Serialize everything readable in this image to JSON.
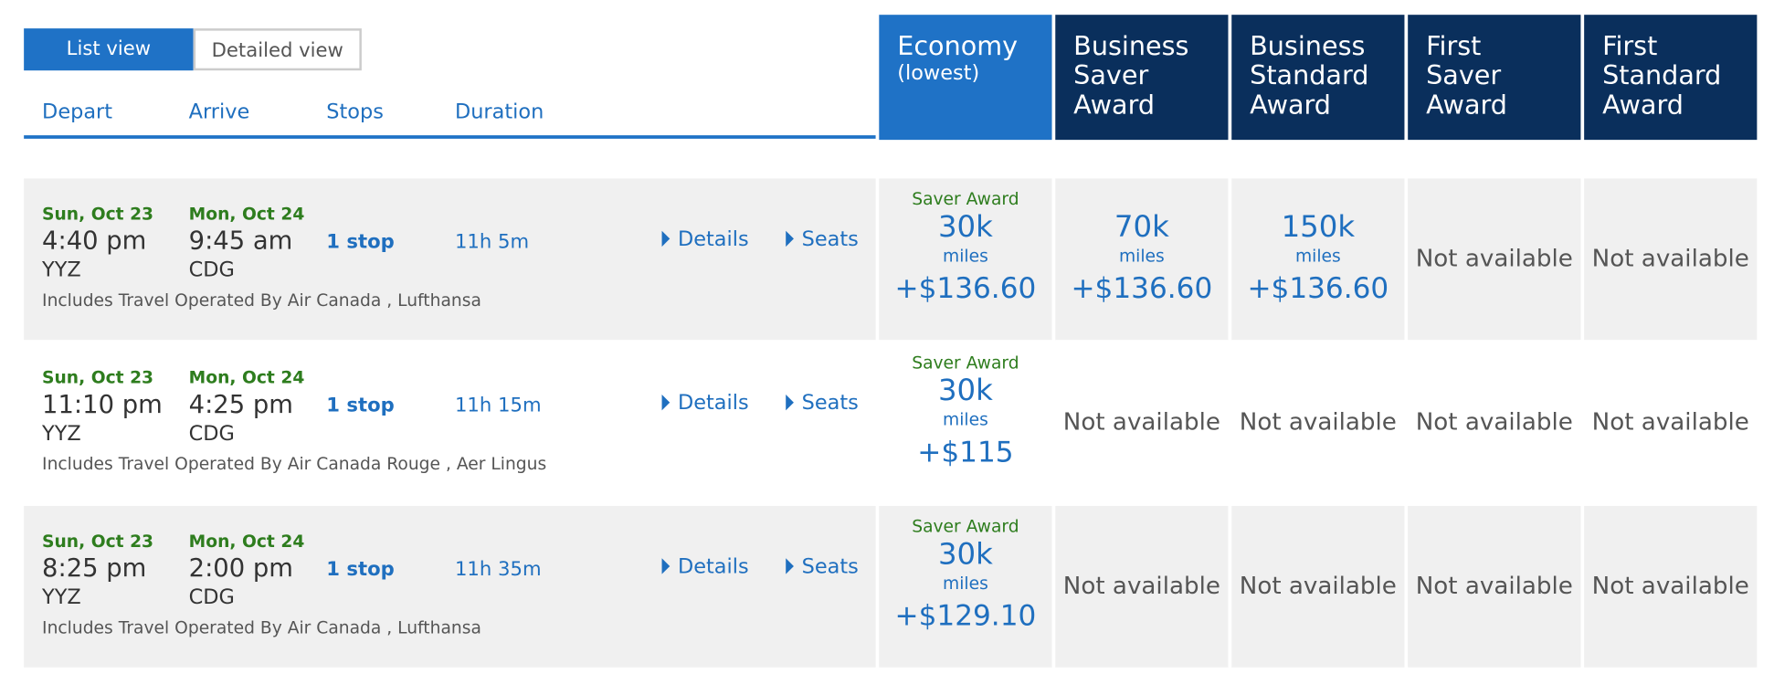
{
  "tabs": [
    "List view",
    "Detailed view"
  ],
  "columns": [
    "Depart",
    "Arrive",
    "Stops",
    "Duration"
  ],
  "fare_headers": [
    {
      "title": "Economy",
      "subtitle": "(lowest)"
    },
    {
      "title": "Business Saver Award"
    },
    {
      "title": "Business Standard Award"
    },
    {
      "title": "First Saver Award"
    },
    {
      "title": "First Standard Award"
    }
  ],
  "rows": [
    {
      "depart_date": "Sun, Oct 23",
      "depart_time": "4:40 pm",
      "origin": "YYZ",
      "arrive_date": "Mon, Oct 24",
      "arrive_time": "9:45 am",
      "destination": "CDG",
      "stops": "1 stop",
      "duration": "11h 5m",
      "operated_by": "Includes Travel Operated By Air Canada , Lufthansa",
      "details": "Details",
      "seats": "Seats",
      "fares": [
        {
          "label": "Saver Award",
          "miles": "30k",
          "unit": "miles",
          "tax": "+$136.60"
        },
        {
          "miles": "70k",
          "unit": "miles",
          "tax": "+$136.60"
        },
        {
          "miles": "150k",
          "unit": "miles",
          "tax": "+$136.60"
        },
        "Not available",
        "Not available"
      ]
    },
    {
      "depart_date": "Sun, Oct 23",
      "depart_time": "11:10 pm",
      "origin": "YYZ",
      "arrive_date": "Mon, Oct 24",
      "arrive_time": "4:25 pm",
      "destination": "CDG",
      "stops": "1 stop",
      "duration": "11h 15m",
      "operated_by": "Includes Travel Operated By Air Canada Rouge , Aer Lingus",
      "details": "Details",
      "seats": "Seats",
      "fares": [
        {
          "label": "Saver Award",
          "miles": "30k",
          "unit": "miles",
          "tax": "+$115"
        },
        "Not available",
        "Not available",
        "Not available",
        "Not available"
      ]
    },
    {
      "depart_date": "Sun, Oct 23",
      "depart_time": "8:25 pm",
      "origin": "YYZ",
      "arrive_date": "Mon, Oct 24",
      "arrive_time": "2:00 pm",
      "destination": "CDG",
      "stops": "1 stop",
      "duration": "11h 35m",
      "operated_by": "Includes Travel Operated By Air Canada , Lufthansa",
      "details": "Details",
      "seats": "Seats",
      "fares": [
        {
          "label": "Saver Award",
          "miles": "30k",
          "unit": "miles",
          "tax": "+$129.10"
        },
        "Not available",
        "Not available",
        "Not available",
        "Not available"
      ]
    }
  ]
}
